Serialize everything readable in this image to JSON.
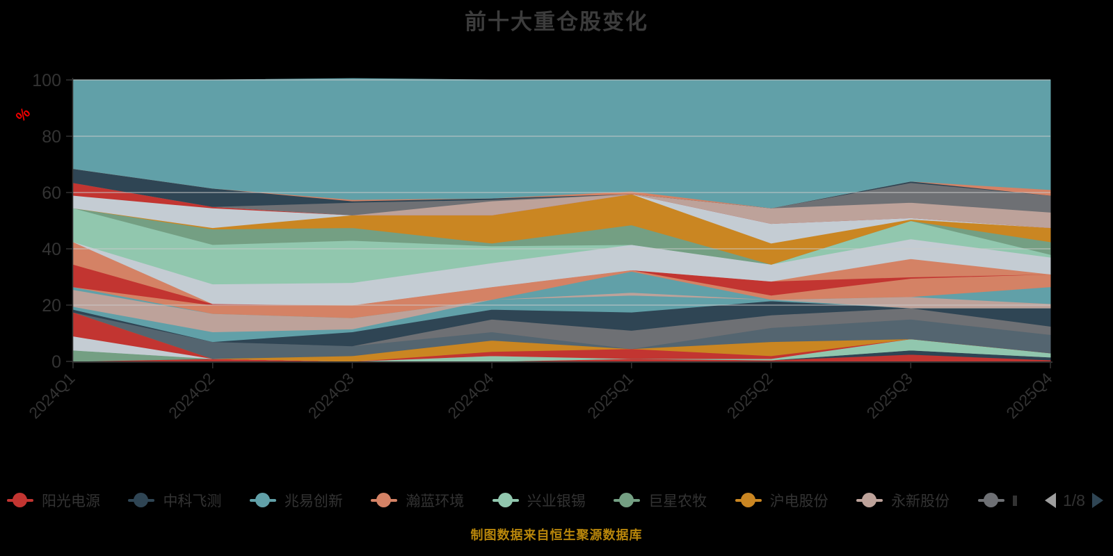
{
  "title": "前十大重仓股变化",
  "footer_note": "制图数据来自恒生聚源数据库",
  "colors": {
    "background": "#000000",
    "title_color": "#3c3c3c",
    "axis_color": "#333333",
    "tick_label_color": "#333333",
    "grid_color": "#cccccc",
    "unit_label_color": "#ee0000",
    "footer_color": "#b8860b",
    "legend_text_color": "#333333",
    "pager_prev_color": "#9e9e9e",
    "pager_next_color": "#2f4554",
    "palette": [
      "#c23531",
      "#2f4554",
      "#61a0a8",
      "#d48265",
      "#91c7ae",
      "#749f83",
      "#ca8622",
      "#bda29a",
      "#6e7074",
      "#546570",
      "#c4ccd3"
    ]
  },
  "y_axis": {
    "name": "%",
    "min": 0,
    "max": 100,
    "interval": 20,
    "tick_labels": [
      "0",
      "20",
      "40",
      "60",
      "80",
      "100"
    ]
  },
  "x_axis": {
    "categories": [
      "2024Q1",
      "2024Q2",
      "2024Q3",
      "2024Q4",
      "2025Q1",
      "2025Q2",
      "2025Q3",
      "2025Q4"
    ],
    "label_rotate": 45
  },
  "legend": {
    "items": [
      {
        "label": "阳光电源",
        "color": "#c23531",
        "truncated": false
      },
      {
        "label": "中科飞测",
        "color": "#2f4554",
        "truncated": false
      },
      {
        "label": "兆易创新",
        "color": "#61a0a8",
        "truncated": false
      },
      {
        "label": "瀚蓝环境",
        "color": "#d48265",
        "truncated": false
      },
      {
        "label": "兴业银锡",
        "color": "#91c7ae",
        "truncated": false
      },
      {
        "label": "巨星农牧",
        "color": "#749f83",
        "truncated": false
      },
      {
        "label": "沪电股份",
        "color": "#ca8622",
        "truncated": false
      },
      {
        "label": "永新股份",
        "color": "#bda29a",
        "truncated": false
      },
      {
        "label": "",
        "color": "#6e7074",
        "truncated": true
      }
    ],
    "pager": {
      "text": "1/8",
      "current_page": 1,
      "total_pages": 8,
      "prev_enabled": false,
      "next_enabled": true
    }
  },
  "chart_data": {
    "type": "area",
    "stacked": true,
    "title": "前十大重仓股变化",
    "ylabel": "%",
    "xlabel": "",
    "ylim": [
      0,
      100
    ],
    "grid": true,
    "legend_position": "bottom",
    "x": [
      "2024Q1",
      "2024Q2",
      "2024Q3",
      "2024Q4",
      "2025Q1",
      "2025Q2",
      "2025Q3",
      "2025Q4"
    ],
    "series": [
      {
        "name": "阳光电源",
        "color": "#c23531",
        "values": [
          0,
          1,
          0,
          0,
          1,
          0.5,
          2.5,
          0.5
        ]
      },
      {
        "name": "中科飞测",
        "color": "#2f4554",
        "values": [
          0,
          0,
          0,
          0,
          0,
          0,
          1.5,
          1
        ]
      },
      {
        "name": "巨星农牧",
        "color": "#749f83",
        "values": [
          4,
          0,
          0,
          0,
          0,
          0,
          0,
          0
        ]
      },
      {
        "name": "兴业银锡",
        "color": "#91c7ae",
        "values": [
          0,
          0,
          0,
          2,
          0,
          0.5,
          4,
          1.5
        ]
      },
      {
        "name": "",
        "color": "#c4ccd3",
        "values": [
          5,
          0,
          0,
          0,
          0,
          0,
          0,
          0
        ]
      },
      {
        "name": "",
        "color": "#c23531",
        "values": [
          8.5,
          0,
          0,
          1.5,
          3.5,
          1,
          0,
          0
        ]
      },
      {
        "name": "沪电股份",
        "color": "#ca8622",
        "values": [
          0,
          0,
          2,
          4,
          0,
          5,
          0,
          0
        ]
      },
      {
        "name": "",
        "color": "#546570",
        "values": [
          0,
          6,
          3.5,
          3,
          0,
          5,
          7,
          6.5
        ]
      },
      {
        "name": "",
        "color": "#6e7074",
        "values": [
          0,
          0,
          0,
          4.5,
          6.5,
          4.5,
          4,
          3
        ]
      },
      {
        "name": "",
        "color": "#2f4554",
        "values": [
          1,
          0,
          5,
          3.5,
          6.5,
          5,
          0,
          6.5
        ]
      },
      {
        "name": "兆易创新",
        "color": "#61a0a8",
        "values": [
          1,
          3.5,
          1,
          3.5,
          6,
          0.5,
          0,
          0
        ]
      },
      {
        "name": "永新股份",
        "color": "#bda29a",
        "values": [
          6,
          6.5,
          4,
          0,
          1,
          0,
          4,
          1.5
        ]
      },
      {
        "name": "",
        "color": "#61a0a8",
        "values": [
          1,
          0,
          0,
          0,
          7.5,
          0,
          0,
          6
        ]
      },
      {
        "name": "瀚蓝环境",
        "color": "#d48265",
        "values": [
          0,
          3,
          4.5,
          4.5,
          0.5,
          1.5,
          6.5,
          4.5
        ]
      },
      {
        "name": "",
        "color": "#c23531",
        "values": [
          8,
          0.5,
          0,
          0,
          0,
          5,
          0.5,
          0
        ]
      },
      {
        "name": "",
        "color": "#d48265",
        "values": [
          8,
          0,
          0,
          0,
          0,
          0,
          6.5,
          0
        ]
      },
      {
        "name": "",
        "color": "#c4ccd3",
        "values": [
          0,
          7,
          8,
          8.5,
          9,
          6,
          7,
          6
        ]
      },
      {
        "name": "",
        "color": "#91c7ae",
        "values": [
          12,
          14,
          15,
          6,
          0,
          0,
          6.5,
          1
        ]
      },
      {
        "name": "",
        "color": "#749f83",
        "values": [
          0,
          5.5,
          4.5,
          1,
          7,
          0,
          0,
          4.5
        ]
      },
      {
        "name": "",
        "color": "#ca8622",
        "values": [
          0,
          0.5,
          4.5,
          10,
          11,
          7.5,
          0.5,
          5
        ]
      },
      {
        "name": "",
        "color": "#c4ccd3",
        "values": [
          4.5,
          7,
          0,
          0,
          0,
          7,
          0.5,
          0
        ]
      },
      {
        "name": "",
        "color": "#c23531",
        "values": [
          4.5,
          0.5,
          0,
          0,
          0,
          0,
          0,
          0
        ]
      },
      {
        "name": "",
        "color": "#bda29a",
        "values": [
          0,
          0,
          0,
          5,
          0,
          5.5,
          5.5,
          5.5
        ]
      },
      {
        "name": "",
        "color": "#6e7074",
        "values": [
          0,
          0,
          4.5,
          0.5,
          0,
          0,
          7,
          6
        ]
      },
      {
        "name": "",
        "color": "#2f4554",
        "values": [
          5,
          6.5,
          0.5,
          0.5,
          0,
          0,
          0.5,
          0
        ]
      },
      {
        "name": "",
        "color": "#d48265",
        "values": [
          0,
          0,
          0.5,
          0,
          1,
          0,
          0,
          2
        ]
      },
      {
        "name": "",
        "color": "#61a0a8",
        "values": [
          31.5,
          38.5,
          43,
          42,
          39.5,
          45.5,
          36,
          39
        ]
      }
    ]
  }
}
